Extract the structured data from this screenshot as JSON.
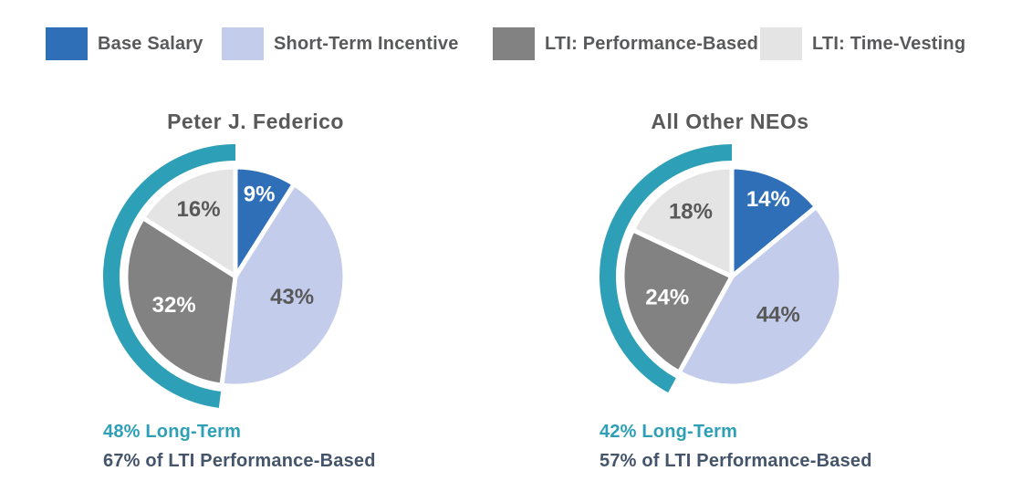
{
  "legend": {
    "items": [
      {
        "label": "Base Salary"
      },
      {
        "label": "Short-Term Incentive"
      },
      {
        "label": "LTI: Performance-Based"
      },
      {
        "label": "LTI: Time-Vesting"
      }
    ]
  },
  "colors": {
    "series": [
      "#2e6fb7",
      "#c3cdeb",
      "#828282",
      "#e4e4e4"
    ],
    "long_term_arc": "#2d9fb6",
    "title_text": "#595959",
    "legend_text": "#58595b",
    "caption_teal": "#2d9fb6",
    "caption_dark": "#44546a",
    "label_on_dark": "#ffffff",
    "label_on_light": "#595959",
    "slice_border": "#ffffff"
  },
  "chart_data": [
    {
      "type": "pie",
      "title": "Peter J. Federico",
      "labels": [
        "Base Salary",
        "Short-Term Incentive",
        "LTI: Performance-Based",
        "LTI: Time-Vesting"
      ],
      "values": [
        9,
        43,
        32,
        16
      ],
      "slice_labels": [
        "9%",
        "43%",
        "32%",
        "16%"
      ],
      "slice_colors": [
        "#2e6fb7",
        "#c3cdeb",
        "#828282",
        "#e4e4e4"
      ],
      "slice_label_colors": [
        "#ffffff",
        "#595959",
        "#ffffff",
        "#595959"
      ],
      "start_angle_deg": 0,
      "direction": "clockwise",
      "highlight_arc": {
        "percent": 48,
        "label": "Long-Term",
        "color": "#2d9fb6",
        "covers": [
          "LTI: Performance-Based",
          "LTI: Time-Vesting"
        ]
      },
      "annotations": [
        "48% Long-Term",
        "67% of LTI Performance-Based"
      ]
    },
    {
      "type": "pie",
      "title": "All Other NEOs",
      "labels": [
        "Base Salary",
        "Short-Term Incentive",
        "LTI: Performance-Based",
        "LTI: Time-Vesting"
      ],
      "values": [
        14,
        44,
        24,
        18
      ],
      "slice_labels": [
        "14%",
        "44%",
        "24%",
        "18%"
      ],
      "slice_colors": [
        "#2e6fb7",
        "#c3cdeb",
        "#828282",
        "#e4e4e4"
      ],
      "slice_label_colors": [
        "#ffffff",
        "#595959",
        "#ffffff",
        "#595959"
      ],
      "start_angle_deg": 0,
      "direction": "clockwise",
      "highlight_arc": {
        "percent": 42,
        "label": "Long-Term",
        "color": "#2d9fb6",
        "covers": [
          "LTI: Performance-Based",
          "LTI: Time-Vesting"
        ]
      },
      "annotations": [
        "42% Long-Term",
        "57% of LTI Performance-Based"
      ]
    }
  ]
}
